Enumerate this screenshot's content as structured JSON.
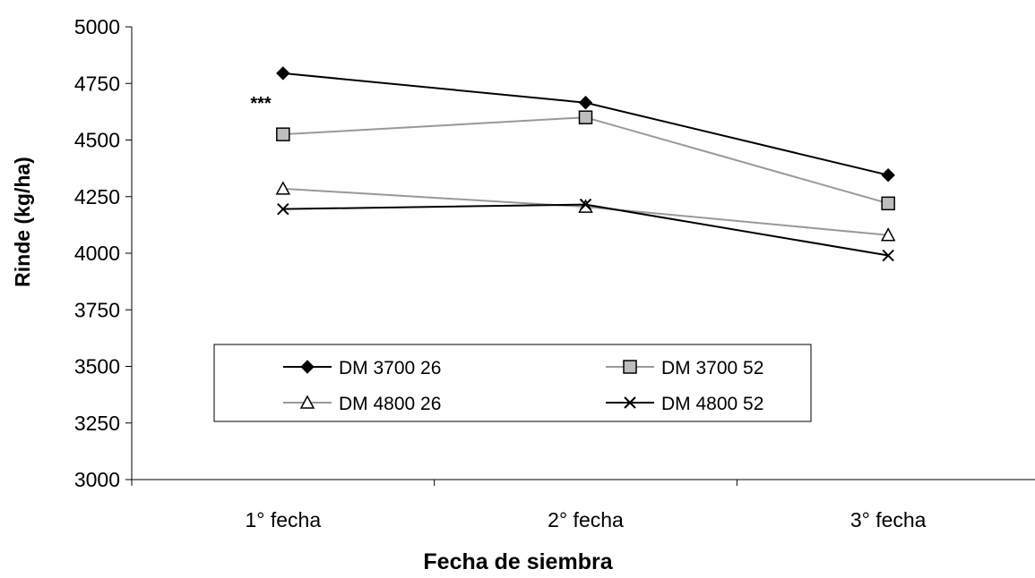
{
  "chart_data": {
    "type": "line",
    "title": "",
    "xlabel": "Fecha de siembra",
    "ylabel": "Rinde (kg/ha)",
    "categories": [
      "1° fecha",
      "2° fecha",
      "3° fecha"
    ],
    "ylim": [
      3000,
      5000
    ],
    "yticks": [
      3000,
      3250,
      3500,
      3750,
      4000,
      4250,
      4500,
      4750,
      5000
    ],
    "grid": false,
    "legend_position": "center-lower",
    "annotation": "***",
    "series": [
      {
        "name": "DM 3700 26",
        "values": [
          4795,
          4665,
          4345
        ],
        "marker": "diamond",
        "color": "#000000"
      },
      {
        "name": "DM 3700 52",
        "values": [
          4525,
          4600,
          4220
        ],
        "marker": "square",
        "color": "#999999"
      },
      {
        "name": "DM 4800 26",
        "values": [
          4285,
          4205,
          4080
        ],
        "marker": "triangle",
        "color": "#999999"
      },
      {
        "name": "DM 4800 52",
        "values": [
          4195,
          4215,
          3990
        ],
        "marker": "x",
        "color": "#000000"
      }
    ]
  }
}
